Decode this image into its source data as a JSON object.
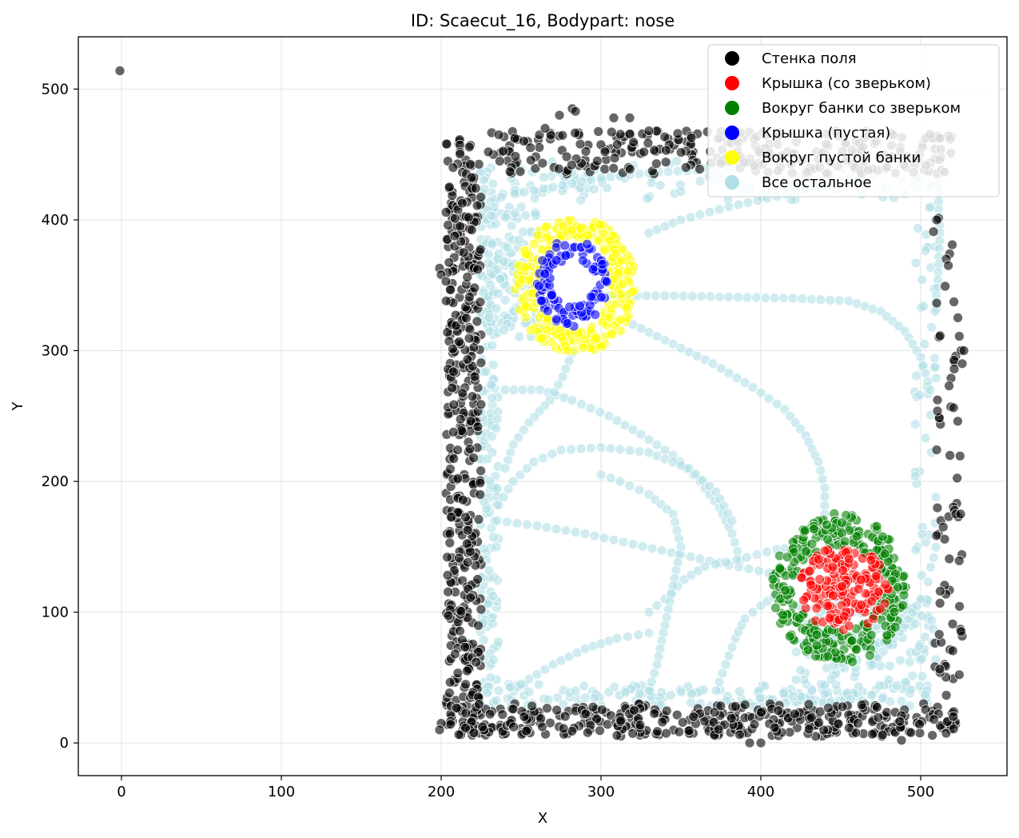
{
  "chart_data": {
    "type": "scatter",
    "title": "ID: Scaecut_16, Bodypart: nose",
    "xlabel": "X",
    "ylabel": "Y",
    "xlim": [
      -27,
      554
    ],
    "ylim": [
      -25,
      540
    ],
    "xticks": [
      0,
      100,
      200,
      300,
      400,
      500
    ],
    "yticks": [
      0,
      100,
      200,
      300,
      400,
      500
    ],
    "grid": true,
    "legend_position": "top-right",
    "series": [
      {
        "name": "Стенка поля",
        "color": "#000000",
        "regions": [
          {
            "shape": "rect",
            "x": [
              203,
              225
            ],
            "y": [
              5,
              462
            ],
            "n": 420
          },
          {
            "shape": "rect",
            "x": [
              203,
              522
            ],
            "y": [
              5,
              30
            ],
            "n": 380
          },
          {
            "shape": "rect",
            "x": [
              228,
              520
            ],
            "y": [
              435,
              468
            ],
            "n": 280
          },
          {
            "shape": "rect",
            "x": [
              508,
              527
            ],
            "y": [
              30,
              410
            ],
            "n": 70
          }
        ],
        "points": [
          {
            "x": -1,
            "y": 514
          },
          {
            "x": 199,
            "y": 363
          },
          {
            "x": 200,
            "y": 358
          },
          {
            "x": 203,
            "y": 353
          },
          {
            "x": 274,
            "y": 480
          },
          {
            "x": 282,
            "y": 485
          },
          {
            "x": 284,
            "y": 483
          },
          {
            "x": 265,
            "y": 470
          },
          {
            "x": 308,
            "y": 478
          },
          {
            "x": 318,
            "y": 478
          },
          {
            "x": 330,
            "y": 468
          },
          {
            "x": 348,
            "y": 466
          },
          {
            "x": 527,
            "y": 300
          },
          {
            "x": 526,
            "y": 290
          },
          {
            "x": 521,
            "y": 286
          },
          {
            "x": 522,
            "y": 175
          },
          {
            "x": 525,
            "y": 175
          },
          {
            "x": 393,
            "y": 0
          },
          {
            "x": 400,
            "y": 0
          },
          {
            "x": 488,
            "y": 2
          },
          {
            "x": 200,
            "y": 15
          },
          {
            "x": 199,
            "y": 10
          }
        ]
      },
      {
        "name": "Крышка (со зверьком)",
        "color": "#ff0000",
        "regions": [
          {
            "shape": "ellipse",
            "cx": 452,
            "cy": 118,
            "rx": 28,
            "ry": 32,
            "n": 170
          }
        ]
      },
      {
        "name": "Вокруг банки со зверьком",
        "color": "#008000",
        "regions": [
          {
            "shape": "ring",
            "cx": 449,
            "cy": 118,
            "rx_in": 28,
            "ry_in": 32,
            "rx_out": 42,
            "ry_out": 58,
            "n": 330
          }
        ]
      },
      {
        "name": "Крышка (пустая)",
        "color": "#0000ff",
        "regions": [
          {
            "shape": "ring",
            "cx": 282,
            "cy": 352,
            "rx_in": 14,
            "ry_in": 18,
            "rx_out": 22,
            "ry_out": 34,
            "n": 110
          }
        ]
      },
      {
        "name": "Вокруг пустой банки",
        "color": "#ffff00",
        "regions": [
          {
            "shape": "ring",
            "cx": 284,
            "cy": 350,
            "rx_in": 22,
            "ry_in": 36,
            "rx_out": 38,
            "ry_out": 52,
            "n": 300
          }
        ]
      },
      {
        "name": "Все остальное",
        "color": "#b0e0e6",
        "regions": [
          {
            "shape": "rect",
            "x": [
              224,
              236
            ],
            "y": [
              28,
              440
            ],
            "n": 170
          },
          {
            "shape": "rect",
            "x": [
              225,
              505
            ],
            "y": [
              28,
              45
            ],
            "n": 150
          },
          {
            "shape": "rect",
            "x": [
              236,
              505
            ],
            "y": [
              415,
              445
            ],
            "n": 110
          },
          {
            "shape": "rect",
            "x": [
              228,
              262
            ],
            "y": [
              310,
              410
            ],
            "n": 120
          },
          {
            "shape": "rect",
            "x": [
              420,
              505
            ],
            "y": [
              30,
              110
            ],
            "n": 140
          },
          {
            "shape": "rect",
            "x": [
              496,
              511
            ],
            "y": [
              60,
              460
            ],
            "n": 70
          }
        ],
        "paths": [
          [
            [
              240,
              270
            ],
            [
              262,
              270
            ],
            [
              282,
              262
            ],
            [
              305,
              250
            ],
            [
              325,
              236
            ],
            [
              345,
              220
            ],
            [
              362,
              200
            ],
            [
              374,
              180
            ],
            [
              382,
              160
            ],
            [
              387,
              140
            ]
          ],
          [
            [
              305,
              342
            ],
            [
              340,
              342
            ],
            [
              380,
              341
            ],
            [
              420,
              340
            ],
            [
              455,
              338
            ],
            [
              475,
              330
            ],
            [
              490,
              315
            ],
            [
              500,
              295
            ],
            [
              506,
              270
            ]
          ],
          [
            [
              320,
              320
            ],
            [
              345,
              305
            ],
            [
              370,
              290
            ],
            [
              395,
              272
            ],
            [
              415,
              255
            ],
            [
              428,
              235
            ],
            [
              436,
              215
            ],
            [
              440,
              195
            ],
            [
              440,
              175
            ]
          ],
          [
            [
              235,
              170
            ],
            [
              260,
              166
            ],
            [
              290,
              160
            ],
            [
              320,
              152
            ],
            [
              350,
              144
            ],
            [
              380,
              136
            ],
            [
              405,
              130
            ],
            [
              430,
              128
            ]
          ],
          [
            [
              236,
              182
            ],
            [
              245,
              200
            ],
            [
              258,
              215
            ],
            [
              275,
              224
            ],
            [
              300,
              226
            ],
            [
              330,
              222
            ],
            [
              355,
              210
            ],
            [
              372,
              192
            ],
            [
              382,
              170
            ]
          ],
          [
            [
              330,
              100
            ],
            [
              340,
              110
            ],
            [
              352,
              125
            ],
            [
              365,
              135
            ],
            [
              385,
              140
            ],
            [
              410,
              148
            ],
            [
              425,
              150
            ]
          ],
          [
            [
              372,
              40
            ],
            [
              378,
              60
            ],
            [
              384,
              80
            ],
            [
              390,
              95
            ],
            [
              400,
              105
            ],
            [
              412,
              115
            ]
          ],
          [
            [
              282,
              298
            ],
            [
              276,
              280
            ],
            [
              268,
              262
            ],
            [
              255,
              245
            ],
            [
              245,
              228
            ],
            [
              240,
              210
            ]
          ],
          [
            [
              300,
              205
            ],
            [
              312,
              200
            ],
            [
              330,
              190
            ],
            [
              345,
              175
            ],
            [
              350,
              150
            ],
            [
              345,
              120
            ],
            [
              340,
              90
            ],
            [
              335,
              60
            ],
            [
              330,
              40
            ]
          ],
          [
            [
              236,
              40
            ],
            [
              250,
              45
            ],
            [
              270,
              60
            ],
            [
              290,
              72
            ],
            [
              310,
              80
            ],
            [
              330,
              84
            ]
          ],
          [
            [
              470,
              60
            ],
            [
              480,
              75
            ],
            [
              490,
              90
            ],
            [
              500,
              110
            ]
          ],
          [
            [
              246,
              420
            ],
            [
              270,
              425
            ],
            [
              300,
              432
            ],
            [
              330,
              436
            ],
            [
              360,
              438
            ]
          ],
          [
            [
              330,
              390
            ],
            [
              350,
              400
            ],
            [
              380,
              410
            ],
            [
              410,
              418
            ],
            [
              440,
              426
            ],
            [
              470,
              432
            ]
          ],
          [
            [
              510,
              445
            ],
            [
              511,
              420
            ],
            [
              512,
              390
            ],
            [
              511,
              360
            ],
            [
              509,
              330
            ]
          ]
        ]
      }
    ]
  }
}
